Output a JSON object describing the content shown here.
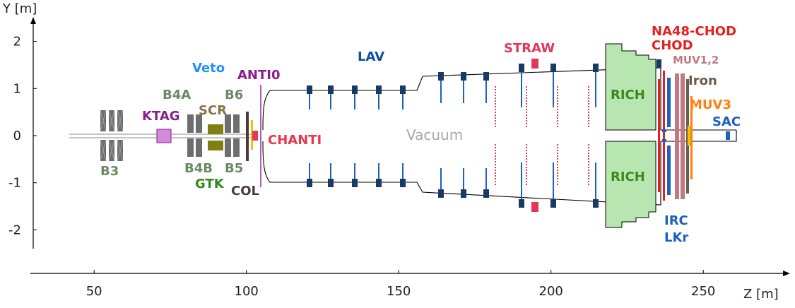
{
  "axes": {
    "y_title": "Y [m]",
    "x_title": "Z [m]",
    "y_ticks": [
      {
        "v": 2,
        "label": "2"
      },
      {
        "v": 1,
        "label": "1"
      },
      {
        "v": 0,
        "label": "0"
      },
      {
        "v": -1,
        "label": "-1"
      },
      {
        "v": -2,
        "label": "-2"
      }
    ],
    "x_ticks": [
      {
        "v": 50,
        "label": "50"
      },
      {
        "v": 100,
        "label": "100"
      },
      {
        "v": 150,
        "label": "150"
      },
      {
        "v": 200,
        "label": "200"
      },
      {
        "v": 250,
        "label": "250"
      }
    ]
  },
  "labels": {
    "b3": "B3",
    "ktag": "KTAG",
    "veto": "Veto",
    "b4a": "B4A",
    "scr": "SCR",
    "b6": "B6",
    "anti0": "ANTI0",
    "b4b": "B4B",
    "b5": "B5",
    "gtk": "GTK",
    "col": "COL",
    "chanti": "CHANTI",
    "lav": "LAV",
    "vacuum": "Vacuum",
    "straw": "STRAW",
    "rich_top": "RICH",
    "rich_bottom": "RICH",
    "na48chod": "NA48-CHOD",
    "chod": "CHOD",
    "muv12": "MUV1,2",
    "iron": "Iron",
    "muv3": "MUV3",
    "sac": "SAC",
    "irc": "IRC",
    "lkr": "LKr"
  },
  "colors": {
    "magnet_gray": "#6e6e6e",
    "b_label": "#6b8a63",
    "ktag": "#8a1e8a",
    "ktag_box": "#d38ad8",
    "veto": "#1e90ff",
    "scr": "#8a7446",
    "anti0": "#8a1e8a",
    "gtk": "#2f8a1e",
    "gtk_box": "#7f7f14",
    "col": "#4a3c3c",
    "chanti": "#e8374c",
    "lav": "#0d4fa8",
    "lav_block": "#1a3a66",
    "straw": "#e0385a",
    "rich_fill": "#b8e6b0",
    "rich_text": "#3c8a1e",
    "na48chod": "#e81e1e",
    "muv12": "#c27a82",
    "iron": "#6b5d4e",
    "muv3": "#ff7f0e",
    "sac": "#1e5fc2",
    "irc_lkr": "#1e5fc2"
  }
}
